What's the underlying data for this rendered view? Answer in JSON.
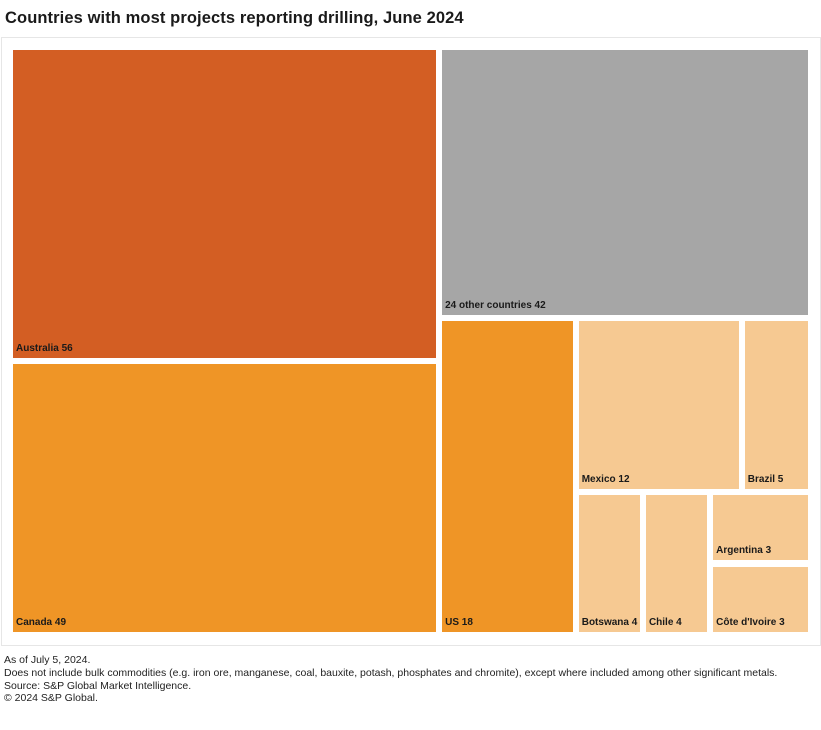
{
  "chart_data": {
    "type": "treemap",
    "title": "Countries with most projects reporting drilling, June 2024",
    "colors": {
      "Australia": "#d35e23",
      "24 other countries": "#a6a6a6",
      "Canada": "#ef9526",
      "US": "#ef9526",
      "Mexico": "#f6c992",
      "Brazil": "#f6c992",
      "Botswana": "#f6c992",
      "Chile": "#f6c992",
      "Argentina": "#f6c992",
      "Côte d'Ivoire": "#f6c992"
    },
    "items": [
      {
        "name": "Australia",
        "value": 56,
        "label": "Australia 56"
      },
      {
        "name": "Canada",
        "value": 49,
        "label": "Canada 49"
      },
      {
        "name": "24 other countries",
        "value": 42,
        "label": "24 other countries 42"
      },
      {
        "name": "US",
        "value": 18,
        "label": "US 18"
      },
      {
        "name": "Mexico",
        "value": 12,
        "label": "Mexico 12"
      },
      {
        "name": "Brazil",
        "value": 5,
        "label": "Brazil 5"
      },
      {
        "name": "Botswana",
        "value": 4,
        "label": "Botswana 4"
      },
      {
        "name": "Chile",
        "value": 4,
        "label": "Chile 4"
      },
      {
        "name": "Argentina",
        "value": 3,
        "label": "Argentina 3"
      },
      {
        "name": "Côte d'Ivoire",
        "value": 3,
        "label": "Côte d'Ivoire 3"
      }
    ]
  },
  "notes": [
    "As of July 5, 2024.",
    "Does not include bulk commodities (e.g. iron ore, manganese, coal, bauxite, potash, phosphates and chromite), except where included among other significant metals.",
    "Source: S&P Global Market Intelligence.",
    "© 2024 S&P Global."
  ]
}
